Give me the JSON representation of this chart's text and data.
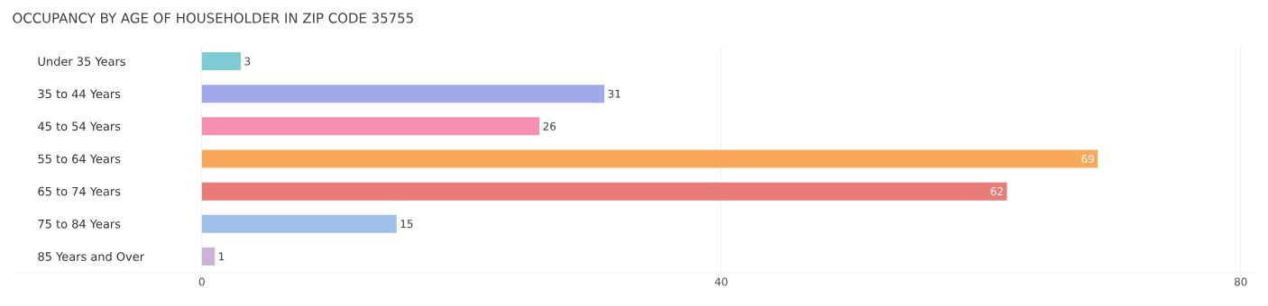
{
  "chart_data": {
    "type": "bar",
    "orientation": "horizontal",
    "title": "OCCUPANCY BY AGE OF HOUSEHOLDER IN ZIP CODE 35755",
    "categories": [
      "Under 35 Years",
      "35 to 44 Years",
      "45 to 54 Years",
      "55 to 64 Years",
      "65 to 74 Years",
      "75 to 84 Years",
      "85 Years and Over"
    ],
    "values": [
      3,
      31,
      26,
      69,
      62,
      15,
      1
    ],
    "colors": [
      "#7ecbd3",
      "#a0aae8",
      "#f78fb2",
      "#f9a75a",
      "#e97c78",
      "#9dbfe9",
      "#ceb1d6"
    ],
    "xlim": [
      -14.5,
      81.2
    ],
    "xticks": [
      0,
      40,
      80
    ],
    "grid": "x",
    "data_labels": true
  }
}
